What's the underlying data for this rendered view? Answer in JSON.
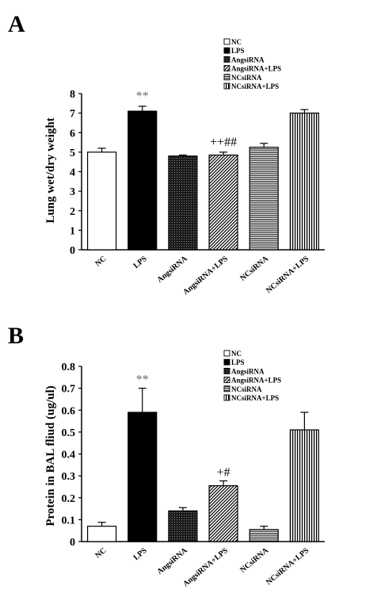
{
  "chart_data": [
    {
      "panel": "A",
      "type": "bar",
      "ylabel": "Lung wet/dry weight",
      "ylim": [
        0,
        8
      ],
      "yticks": [
        "0",
        "1",
        "2",
        "3",
        "4",
        "5",
        "6",
        "7",
        "8"
      ],
      "categories": [
        "NC",
        "LPS",
        "AngsiRNA",
        "AngsiRNA+LPS",
        "NCsiRNA",
        "NCsiRNA+LPS"
      ],
      "values": [
        5.0,
        7.1,
        4.8,
        4.85,
        5.25,
        7.0
      ],
      "errors": [
        0.2,
        0.25,
        0.05,
        0.15,
        0.2,
        0.18
      ],
      "annotations": [
        "",
        "**",
        "",
        "++##",
        "",
        ""
      ],
      "legend": [
        "NC",
        "LPS",
        "AngsiRNA",
        "AngsiRNA+LPS",
        "NCsiRNA",
        "NCsiRNA+LPS"
      ],
      "legend_position": "top-right",
      "grid": false
    },
    {
      "panel": "B",
      "type": "bar",
      "ylabel": "Protein in BAL fliud (ug/ul)",
      "ylim": [
        0,
        0.8
      ],
      "yticks": [
        "0",
        "0.1",
        "0.2",
        "0.3",
        "0.4",
        "0.5",
        "0.6",
        "0.7",
        "0.8"
      ],
      "categories": [
        "NC",
        "LPS",
        "AngsiRNA",
        "AngsiRNA+LPS",
        "NCsiRNA",
        "NCsiRNA+LPS"
      ],
      "values": [
        0.07,
        0.59,
        0.14,
        0.255,
        0.055,
        0.51
      ],
      "errors": [
        0.018,
        0.11,
        0.015,
        0.022,
        0.015,
        0.08
      ],
      "annotations": [
        "",
        "**",
        "",
        "+#",
        "",
        ""
      ],
      "legend": [
        "NC",
        "LPS",
        "AngsiRNA",
        "AngsiRNA+LPS",
        "NCsiRNA",
        "NCsiRNA+LPS"
      ],
      "legend_position": "top-right",
      "grid": false
    }
  ]
}
